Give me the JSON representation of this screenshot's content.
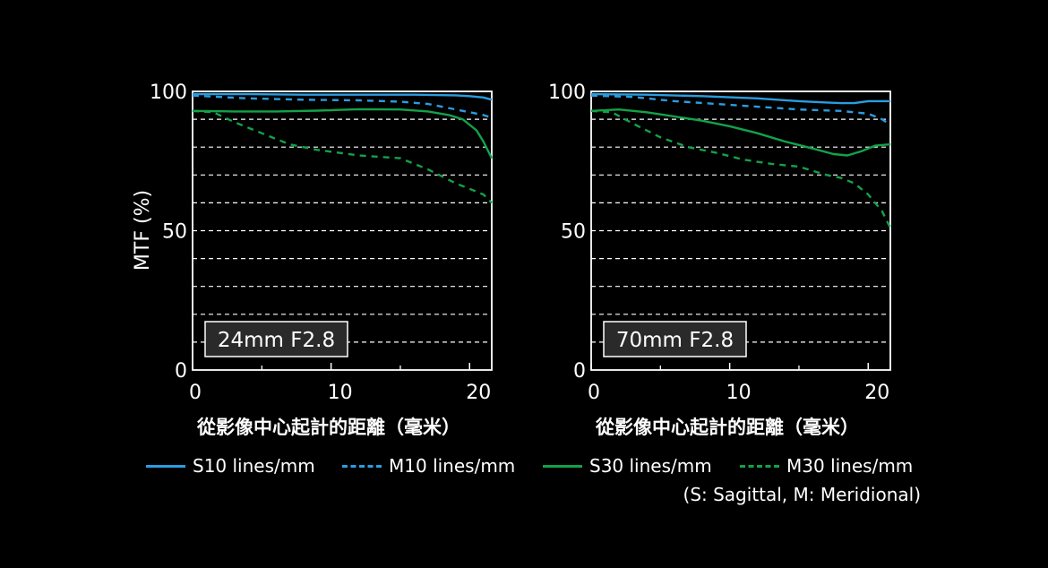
{
  "ylabel": "MTF (%)",
  "colors": {
    "sagittal10": "#2a9de0",
    "meridional10": "#2a9de0",
    "sagittal30": "#12a24a",
    "meridional30": "#12a24a",
    "grid": "#ffffff",
    "background": "#000000"
  },
  "legend": {
    "items": [
      {
        "label": "S10 lines/mm",
        "style": "solid",
        "color": "#2a9de0"
      },
      {
        "label": "M10 lines/mm",
        "style": "dashed",
        "color": "#2a9de0"
      },
      {
        "label": "S30 lines/mm",
        "style": "solid",
        "color": "#12a24a"
      },
      {
        "label": "M30 lines/mm",
        "style": "dashed",
        "color": "#12a24a"
      }
    ],
    "note": "(S: Sagittal, M: Meridional)"
  },
  "chart_data": [
    {
      "type": "line",
      "title": "24mm F2.8",
      "xlabel": "從影像中心起計的距離（毫米）",
      "ylabel": "MTF (%)",
      "xlim": [
        0,
        21.6
      ],
      "ylim": [
        0,
        100
      ],
      "x_ticks": [
        0,
        10,
        20
      ],
      "y_ticks": [
        0,
        50,
        100
      ],
      "grid": "horizontal dashed every 10",
      "series": [
        {
          "name": "S10 lines/mm",
          "style": "solid",
          "color": "#2a9de0",
          "points": [
            [
              0,
              99
            ],
            [
              4,
              99
            ],
            [
              8,
              98.8
            ],
            [
              12,
              98.8
            ],
            [
              16,
              98.8
            ],
            [
              19,
              98.6
            ],
            [
              20,
              98.3
            ],
            [
              21,
              97.8
            ],
            [
              21.6,
              97
            ]
          ]
        },
        {
          "name": "M10 lines/mm",
          "style": "dashed",
          "color": "#2a9de0",
          "points": [
            [
              0,
              98.5
            ],
            [
              4,
              97.5
            ],
            [
              8,
              97
            ],
            [
              12,
              96.8
            ],
            [
              15,
              96.3
            ],
            [
              17,
              95.5
            ],
            [
              19,
              93.5
            ],
            [
              20,
              92.5
            ],
            [
              21,
              91.5
            ],
            [
              21.6,
              90.5
            ]
          ]
        },
        {
          "name": "S30 lines/mm",
          "style": "solid",
          "color": "#12a24a",
          "points": [
            [
              0,
              93
            ],
            [
              3,
              92.8
            ],
            [
              6,
              92.8
            ],
            [
              9,
              93.1
            ],
            [
              12,
              93.6
            ],
            [
              15,
              93.5
            ],
            [
              17,
              92.8
            ],
            [
              18.5,
              91.5
            ],
            [
              19.5,
              90
            ],
            [
              20.5,
              86
            ],
            [
              21,
              82
            ],
            [
              21.6,
              76
            ]
          ]
        },
        {
          "name": "M30 lines/mm",
          "style": "dashed",
          "color": "#12a24a",
          "points": [
            [
              0,
              93
            ],
            [
              1.5,
              92.5
            ],
            [
              3,
              89
            ],
            [
              5,
              85
            ],
            [
              7,
              81
            ],
            [
              9,
              79
            ],
            [
              12,
              77
            ],
            [
              15,
              76
            ],
            [
              17,
              72
            ],
            [
              19,
              67
            ],
            [
              20,
              65
            ],
            [
              21,
              63
            ],
            [
              21.6,
              60
            ]
          ]
        }
      ]
    },
    {
      "type": "line",
      "title": "70mm F2.8",
      "xlabel": "從影像中心起計的距離（毫米）",
      "ylabel": "MTF (%)",
      "xlim": [
        0,
        21.6
      ],
      "ylim": [
        0,
        100
      ],
      "x_ticks": [
        0,
        10,
        20
      ],
      "y_ticks": [
        0,
        50,
        100
      ],
      "grid": "horizontal dashed every 10",
      "series": [
        {
          "name": "S10 lines/mm",
          "style": "solid",
          "color": "#2a9de0",
          "points": [
            [
              0,
              99
            ],
            [
              4,
              98.8
            ],
            [
              8,
              98.3
            ],
            [
              12,
              97.5
            ],
            [
              15,
              96.5
            ],
            [
              17,
              96
            ],
            [
              18,
              95.8
            ],
            [
              19,
              95.8
            ],
            [
              20,
              96.5
            ],
            [
              21.6,
              96.5
            ]
          ]
        },
        {
          "name": "M10 lines/mm",
          "style": "dashed",
          "color": "#2a9de0",
          "points": [
            [
              0,
              98.5
            ],
            [
              3,
              98
            ],
            [
              6,
              96.5
            ],
            [
              9,
              95.5
            ],
            [
              12,
              94.5
            ],
            [
              15,
              93.5
            ],
            [
              18,
              93
            ],
            [
              20,
              92
            ],
            [
              21,
              90
            ],
            [
              21.6,
              88
            ]
          ]
        },
        {
          "name": "S30 lines/mm",
          "style": "solid",
          "color": "#12a24a",
          "points": [
            [
              0,
              93
            ],
            [
              2,
              93.5
            ],
            [
              4,
              92.5
            ],
            [
              6,
              91
            ],
            [
              8,
              89.5
            ],
            [
              10,
              87.5
            ],
            [
              12,
              85
            ],
            [
              14,
              82
            ],
            [
              16,
              79.5
            ],
            [
              17.5,
              77.5
            ],
            [
              18.5,
              77
            ],
            [
              19.5,
              78.5
            ],
            [
              20.5,
              80.5
            ],
            [
              21.6,
              81
            ]
          ]
        },
        {
          "name": "M30 lines/mm",
          "style": "dashed",
          "color": "#12a24a",
          "points": [
            [
              0,
              93
            ],
            [
              1.5,
              92.5
            ],
            [
              3,
              88.5
            ],
            [
              5,
              83.5
            ],
            [
              7,
              80
            ],
            [
              9,
              78
            ],
            [
              11,
              75.5
            ],
            [
              13,
              74
            ],
            [
              15,
              73
            ],
            [
              17,
              70
            ],
            [
              18,
              69
            ],
            [
              19,
              67
            ],
            [
              20,
              63
            ],
            [
              21,
              57
            ],
            [
              21.6,
              51
            ]
          ]
        }
      ]
    }
  ]
}
